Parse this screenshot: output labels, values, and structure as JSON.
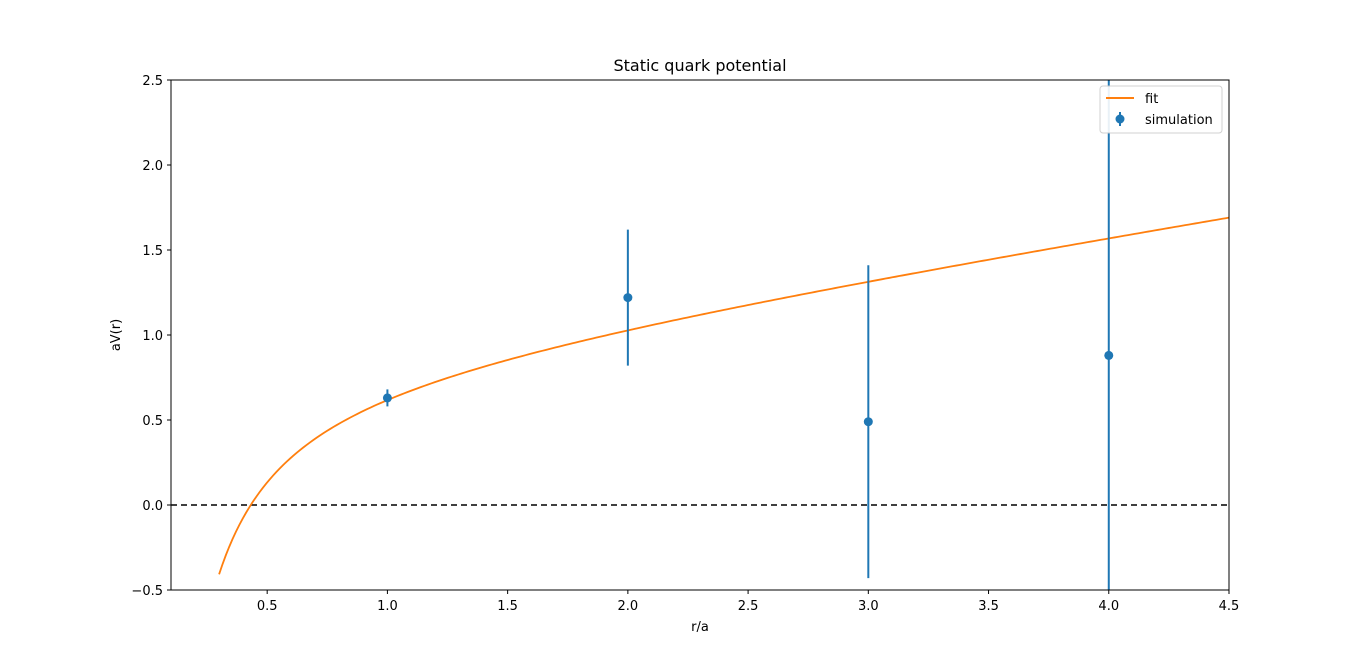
{
  "chart_data": {
    "type": "scatter",
    "title": "Static quark potential",
    "xlabel": "r/a",
    "ylabel": "aV(r)",
    "xlim": [
      0.1,
      4.5
    ],
    "ylim": [
      -0.5,
      2.5
    ],
    "xticks": [
      0.5,
      1.0,
      1.5,
      2.0,
      2.5,
      3.0,
      3.5,
      4.0,
      4.5
    ],
    "yticks": [
      -0.5,
      0.0,
      0.5,
      1.0,
      1.5,
      2.0,
      2.5
    ],
    "grid": false,
    "legend": "top-right",
    "reference_line": {
      "y": 0.0,
      "style": "dashed",
      "color": "#000000"
    },
    "series": [
      {
        "name": "simulation",
        "kind": "errorbar",
        "color": "#1f77b4",
        "x": [
          1.0,
          2.0,
          3.0,
          4.0
        ],
        "y": [
          0.63,
          1.22,
          0.49,
          0.88
        ],
        "yerr": [
          0.05,
          0.4,
          0.92,
          1.9
        ]
      },
      {
        "name": "fit",
        "kind": "line",
        "color": "#ff7f0e",
        "model": {
          "form": "A + B/r + s*r",
          "A": 0.765,
          "B": -0.372,
          "s": 0.224
        },
        "x_range": [
          0.3,
          4.5
        ]
      }
    ]
  }
}
